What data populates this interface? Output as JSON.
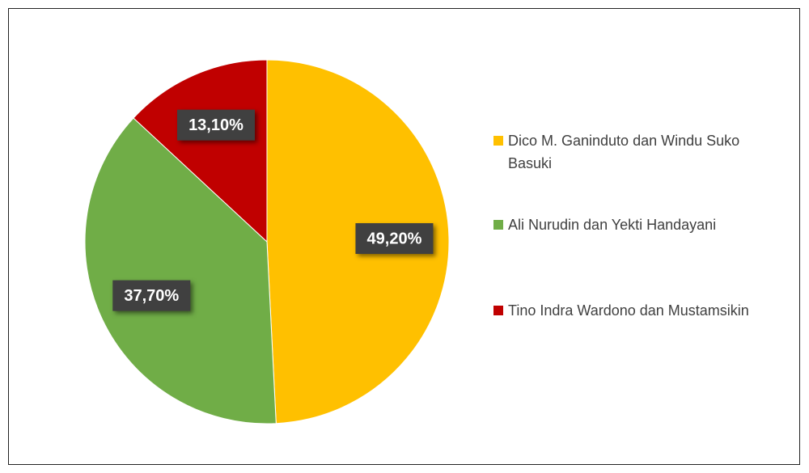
{
  "chart_data": {
    "type": "pie",
    "categories": [
      "Dico M. Ganinduto dan Windu Suko Basuki",
      "Ali Nurudin dan Yekti Handayani",
      "Tino Indra Wardono dan Mustamsikin"
    ],
    "values": [
      49.2,
      37.7,
      13.1
    ],
    "value_labels": [
      "49,20%",
      "37,70%",
      "13,10%"
    ],
    "colors": [
      "#ffc000",
      "#70ad47",
      "#c00000"
    ],
    "legend": "right"
  }
}
